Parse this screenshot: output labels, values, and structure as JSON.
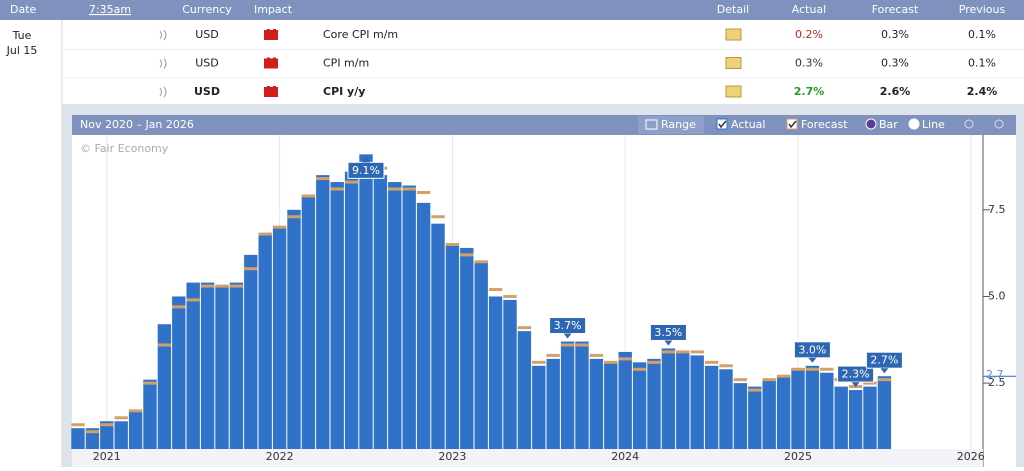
{
  "header": {
    "date": "Date",
    "time": "7:35am",
    "currency": "Currency",
    "impact": "Impact",
    "detail": "Detail",
    "actual": "Actual",
    "forecast": "Forecast",
    "previous": "Previous"
  },
  "day": {
    "weekday": "Tue",
    "date": "Jul 15"
  },
  "rows": [
    {
      "currency": "USD",
      "event": "Core CPI m/m",
      "actual": "0.2%",
      "actual_color": "#cc2020",
      "forecast": "0.3%",
      "previous": "0.1%",
      "bold": false
    },
    {
      "currency": "USD",
      "event": "CPI m/m",
      "actual": "0.3%",
      "actual_color": "#333333",
      "forecast": "0.3%",
      "previous": "0.1%",
      "bold": false
    },
    {
      "currency": "USD",
      "event": "CPI y/y",
      "actual": "2.7%",
      "actual_color": "#2a9a2a",
      "forecast": "2.6%",
      "previous": "2.4%",
      "bold": true
    }
  ],
  "chart_data": {
    "type": "bar",
    "title": "Nov 2020 – Jan 2026",
    "watermark": "© Fair Economy",
    "range_button": "Range",
    "modes": [
      "Bar",
      "Line"
    ],
    "mode": "Bar",
    "categories": [
      null,
      null,
      "2021",
      null,
      null,
      null,
      null,
      null,
      null,
      null,
      null,
      null,
      null,
      null,
      "2022",
      null,
      null,
      null,
      null,
      null,
      null,
      null,
      null,
      null,
      null,
      null,
      "2023",
      null,
      null,
      null,
      null,
      null,
      null,
      null,
      null,
      null,
      null,
      null,
      "2024",
      null,
      null,
      null,
      null,
      null,
      null,
      null,
      null,
      null,
      null,
      null,
      "2025",
      null,
      null,
      null,
      null,
      null,
      null,
      null,
      null,
      null,
      null,
      null,
      "2026"
    ],
    "series": [
      {
        "name": "Actual",
        "color": "#2f72c8",
        "values": [
          1.2,
          1.2,
          1.4,
          1.4,
          1.7,
          2.6,
          4.2,
          5.0,
          5.4,
          5.4,
          5.3,
          5.4,
          6.2,
          6.8,
          7.0,
          7.5,
          7.9,
          8.5,
          8.3,
          8.6,
          9.1,
          8.5,
          8.3,
          8.2,
          7.7,
          7.1,
          6.5,
          6.4,
          6.0,
          5.0,
          4.9,
          4.0,
          3.0,
          3.2,
          3.7,
          3.7,
          3.2,
          3.1,
          3.4,
          3.1,
          3.2,
          3.5,
          3.4,
          3.3,
          3.0,
          2.9,
          2.5,
          2.4,
          2.6,
          2.7,
          2.9,
          3.0,
          2.8,
          2.4,
          2.3,
          2.4,
          2.7,
          null,
          null,
          null,
          null,
          null,
          null
        ],
        "value_labels": [
          null,
          null,
          null,
          null,
          null,
          null,
          null,
          null,
          null,
          null,
          null,
          null,
          null,
          null,
          null,
          null,
          null,
          null,
          null,
          null,
          "9.1%",
          null,
          null,
          null,
          null,
          null,
          null,
          null,
          null,
          null,
          null,
          null,
          null,
          null,
          "3.7%",
          null,
          null,
          null,
          null,
          null,
          null,
          "3.5%",
          null,
          null,
          null,
          null,
          null,
          null,
          null,
          null,
          null,
          "3.0%",
          null,
          null,
          "2.3%",
          null,
          "2.7%",
          null,
          null,
          null,
          null,
          null,
          null
        ]
      },
      {
        "name": "Forecast",
        "color": "#d4a06a",
        "values": [
          1.3,
          1.1,
          1.3,
          1.5,
          1.7,
          2.5,
          3.6,
          4.7,
          4.9,
          5.3,
          5.3,
          5.3,
          5.8,
          6.8,
          7.0,
          7.3,
          7.9,
          8.4,
          8.1,
          8.3,
          8.8,
          8.7,
          8.1,
          8.1,
          8.0,
          7.3,
          6.5,
          6.2,
          6.0,
          5.2,
          5.0,
          4.1,
          3.1,
          3.3,
          3.6,
          3.6,
          3.3,
          3.1,
          3.2,
          2.9,
          3.1,
          3.4,
          3.4,
          3.4,
          3.1,
          3.0,
          2.6,
          2.3,
          2.6,
          2.7,
          2.9,
          2.9,
          2.9,
          2.6,
          2.4,
          2.5,
          2.6,
          null,
          null,
          null,
          null,
          null,
          null
        ]
      }
    ],
    "ylim": [
      0.6,
      9.6
    ],
    "yticks": [
      2.5,
      {
        "value": 5,
        "label": "5.0"
      },
      7.5
    ],
    "grid": true
  }
}
